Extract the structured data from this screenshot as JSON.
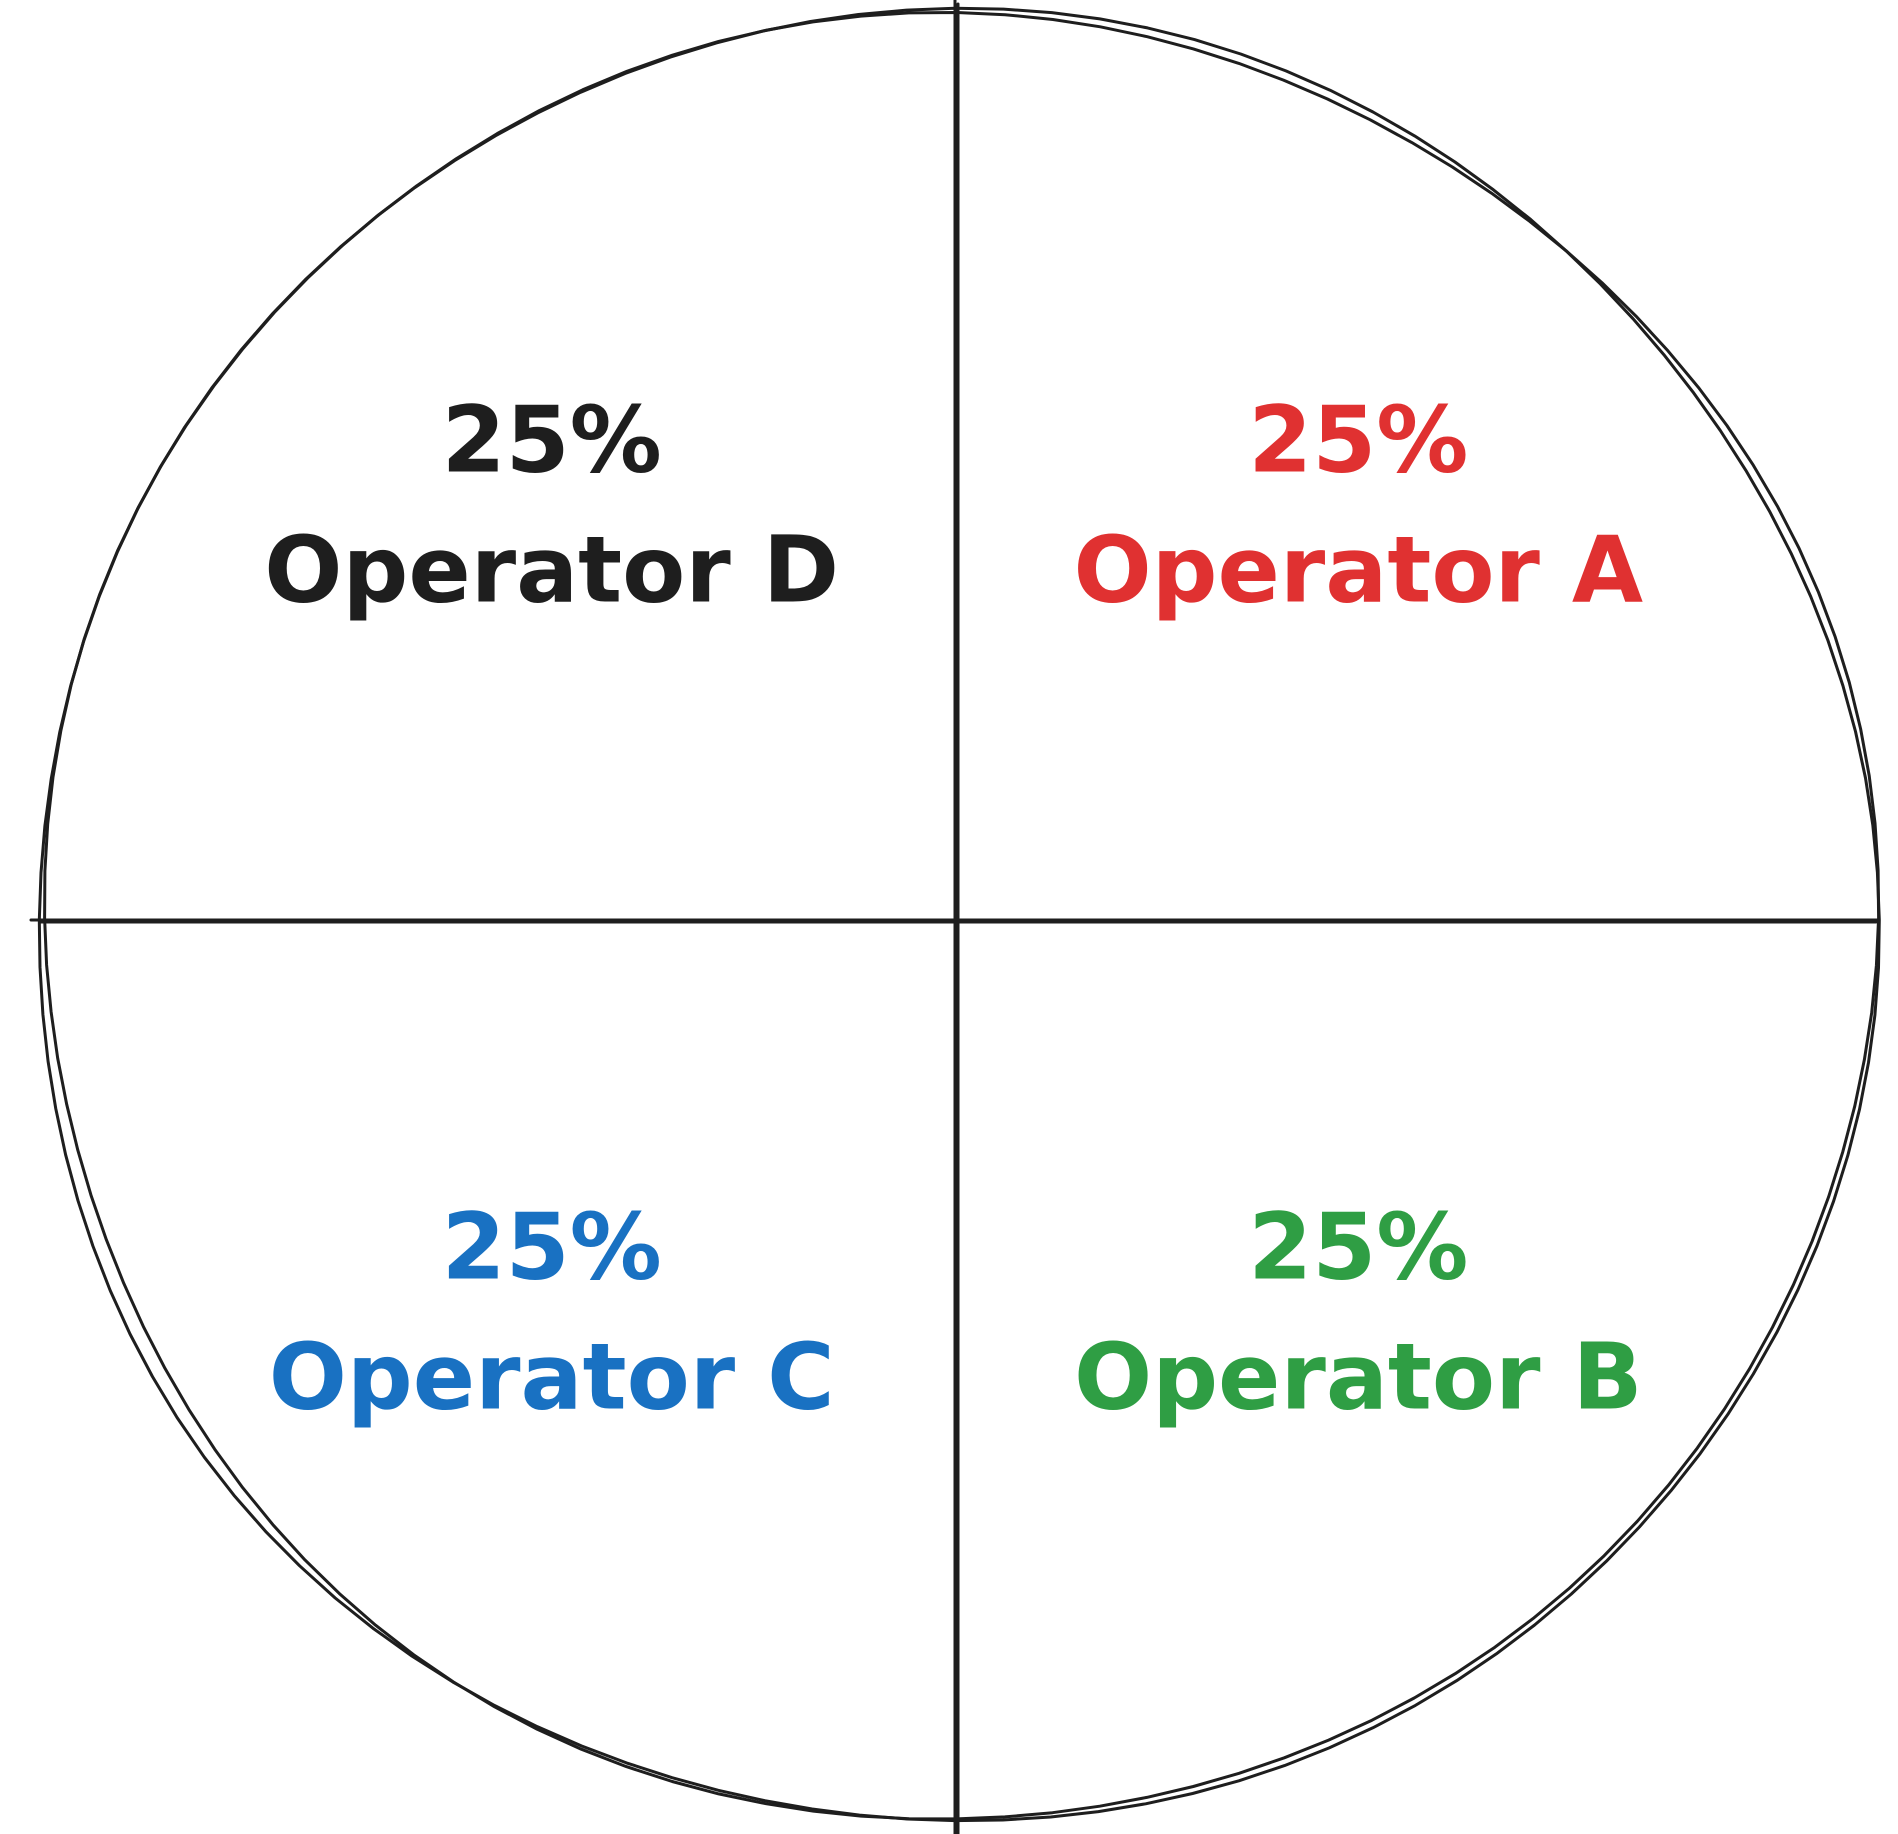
{
  "chart_data": {
    "type": "pie",
    "title": "",
    "slices": [
      {
        "label": "Operator A",
        "value": 25,
        "value_label": "25%",
        "color": "#e03131"
      },
      {
        "label": "Operator B",
        "value": 25,
        "value_label": "25%",
        "color": "#2f9e44"
      },
      {
        "label": "Operator C",
        "value": 25,
        "value_label": "25%",
        "color": "#1971c2"
      },
      {
        "label": "Operator D",
        "value": 25,
        "value_label": "25%",
        "color": "#1e1e1e"
      }
    ],
    "start_position": "top",
    "direction": "clockwise",
    "legend": "none",
    "style": "hand-drawn sketch"
  }
}
